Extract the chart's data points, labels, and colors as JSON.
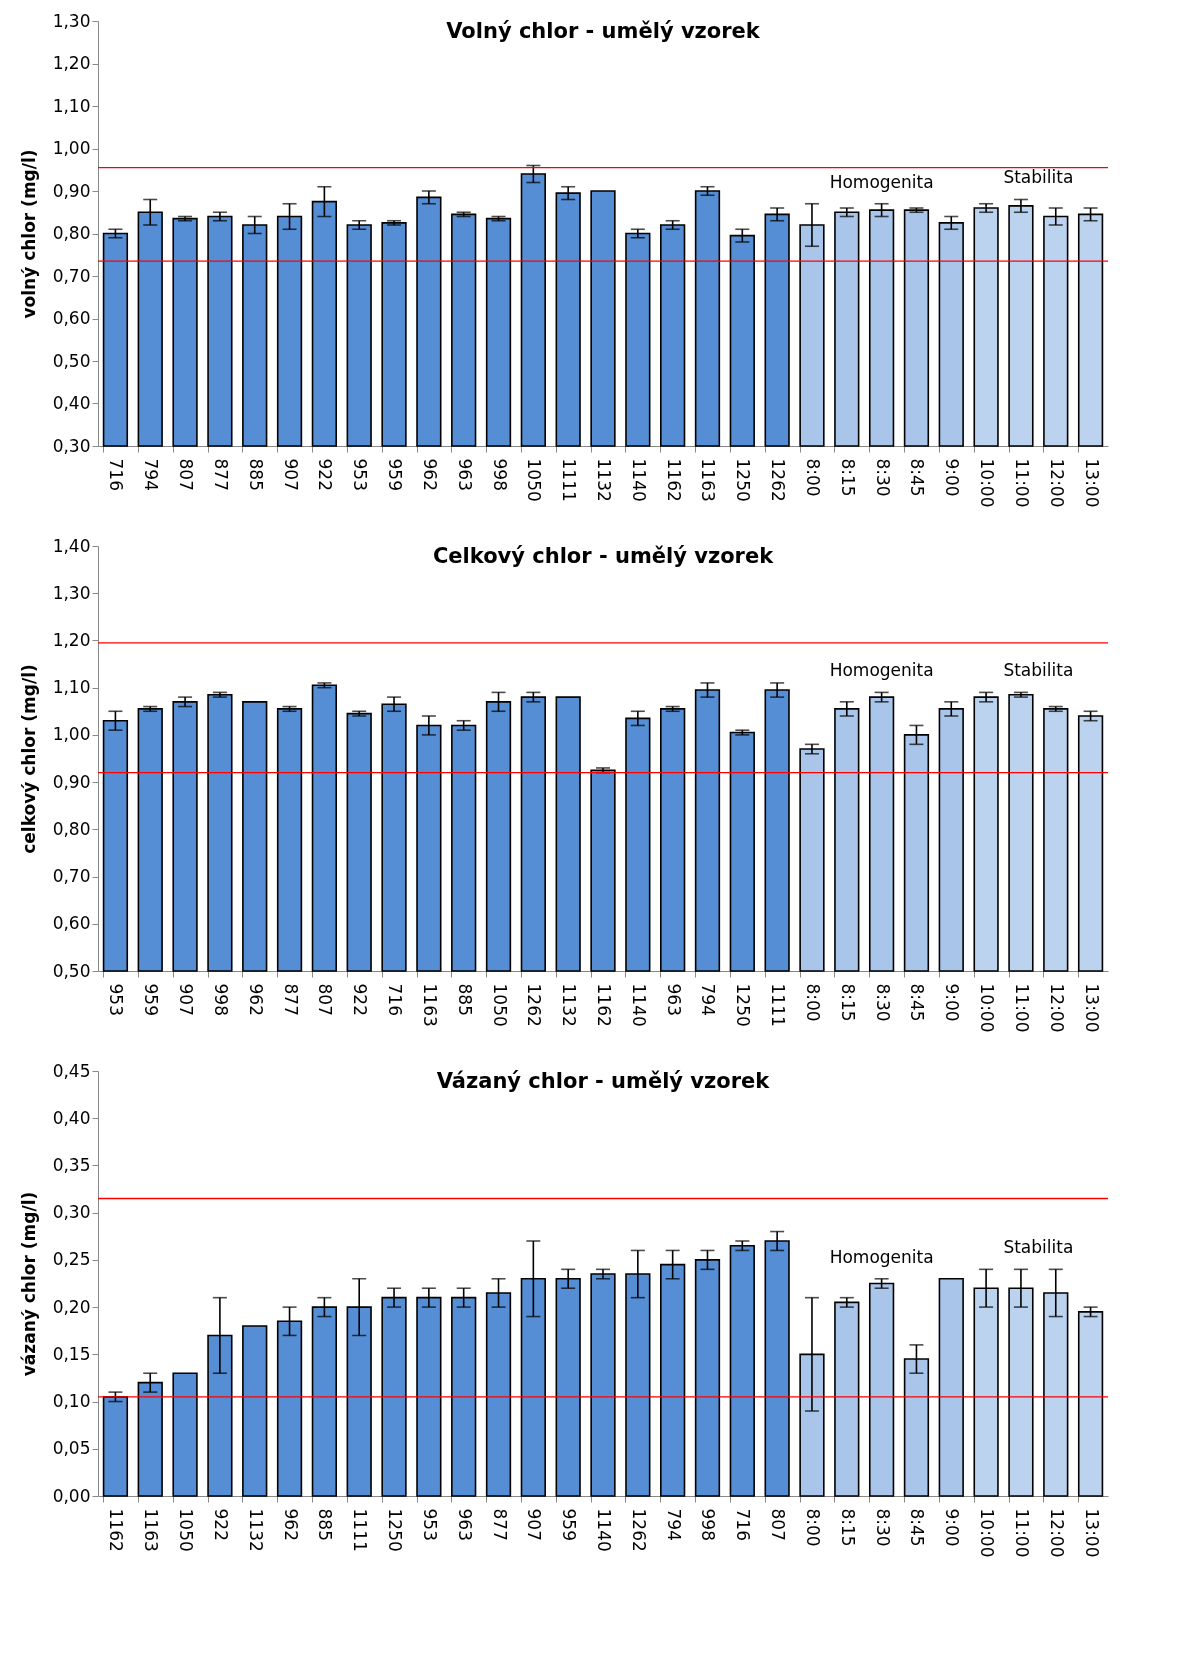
{
  "chart_data": [
    {
      "type": "bar",
      "title": "Volný chlor - umělý vzorek",
      "ylabel": "volný chlor (mg/l)",
      "categories": [
        "716",
        "794",
        "807",
        "877",
        "885",
        "907",
        "922",
        "953",
        "959",
        "962",
        "963",
        "998",
        "1050",
        "1111",
        "1132",
        "1140",
        "1162",
        "1163",
        "1250",
        "1262",
        "8:00",
        "8:15",
        "8:30",
        "8:45",
        "9:00",
        "10:00",
        "11:00",
        "12:00",
        "13:00"
      ],
      "values": [
        0.8,
        0.85,
        0.835,
        0.84,
        0.82,
        0.84,
        0.875,
        0.82,
        0.825,
        0.885,
        0.845,
        0.835,
        0.94,
        0.895,
        0.9,
        0.8,
        0.82,
        0.9,
        0.795,
        0.845,
        0.82,
        0.85,
        0.855,
        0.855,
        0.825,
        0.86,
        0.865,
        0.84,
        0.845
      ],
      "errors": [
        0.01,
        0.03,
        0.005,
        0.01,
        0.02,
        0.03,
        0.035,
        0.01,
        0.005,
        0.015,
        0.005,
        0.005,
        0.02,
        0.015,
        null,
        0.01,
        0.01,
        0.01,
        0.015,
        0.015,
        0.05,
        0.01,
        0.015,
        0.005,
        0.015,
        0.01,
        0.015,
        0.02,
        0.015
      ],
      "colors": [
        "#558ed5",
        "#558ed5",
        "#558ed5",
        "#558ed5",
        "#558ed5",
        "#558ed5",
        "#558ed5",
        "#558ed5",
        "#558ed5",
        "#558ed5",
        "#558ed5",
        "#558ed5",
        "#558ed5",
        "#558ed5",
        "#558ed5",
        "#558ed5",
        "#558ed5",
        "#558ed5",
        "#558ed5",
        "#558ed5",
        "#a9c6ea",
        "#a9c6ea",
        "#a9c6ea",
        "#a9c6ea",
        "#a9c6ea",
        "#bcd3ef",
        "#bcd3ef",
        "#bcd3ef",
        "#bcd3ef"
      ],
      "ylim": [
        0.3,
        1.3
      ],
      "yticks": [
        {
          "value": 0.3,
          "label": "0,30"
        },
        {
          "value": 0.4,
          "label": "0,40"
        },
        {
          "value": 0.5,
          "label": "0,50"
        },
        {
          "value": 0.6,
          "label": "0,60"
        },
        {
          "value": 0.7,
          "label": "0,70"
        },
        {
          "value": 0.8,
          "label": "0,80"
        },
        {
          "value": 0.9,
          "label": "0,90"
        },
        {
          "value": 1.0,
          "label": "1,00"
        },
        {
          "value": 1.1,
          "label": "1,10"
        },
        {
          "value": 1.2,
          "label": "1,20"
        },
        {
          "value": 1.3,
          "label": "1,30"
        }
      ],
      "ref_lines": [
        {
          "axis": "y",
          "value": 0.955,
          "color": "#ff0000"
        },
        {
          "axis": "y",
          "value": 0.735,
          "color": "#ff0000"
        }
      ],
      "annotations": [
        "Homogenita",
        "Stabilita"
      ],
      "grid": false
    },
    {
      "type": "bar",
      "title": "Celkový chlor - umělý vzorek",
      "ylabel": "celkový chlor (mg/l)",
      "categories": [
        "953",
        "959",
        "907",
        "998",
        "962",
        "877",
        "807",
        "922",
        "716",
        "1163",
        "885",
        "1050",
        "1262",
        "1132",
        "1162",
        "1140",
        "963",
        "794",
        "1250",
        "1111",
        "8:00",
        "8:15",
        "8:30",
        "8:45",
        "9:00",
        "10:00",
        "11:00",
        "12:00",
        "13:00"
      ],
      "values": [
        1.03,
        1.055,
        1.07,
        1.085,
        1.07,
        1.055,
        1.105,
        1.045,
        1.065,
        1.02,
        1.02,
        1.07,
        1.08,
        1.08,
        0.925,
        1.035,
        1.055,
        1.095,
        1.005,
        1.095,
        0.97,
        1.055,
        1.08,
        1.0,
        1.055,
        1.08,
        1.085,
        1.055,
        1.04
      ],
      "errors": [
        0.02,
        0.005,
        0.01,
        0.005,
        null,
        0.005,
        0.005,
        0.005,
        0.015,
        0.02,
        0.01,
        0.02,
        0.01,
        null,
        0.005,
        0.015,
        0.005,
        0.015,
        0.005,
        0.015,
        0.01,
        0.015,
        0.01,
        0.02,
        0.015,
        0.01,
        0.005,
        0.005,
        0.01
      ],
      "colors": [
        "#558ed5",
        "#558ed5",
        "#558ed5",
        "#558ed5",
        "#558ed5",
        "#558ed5",
        "#558ed5",
        "#558ed5",
        "#558ed5",
        "#558ed5",
        "#558ed5",
        "#558ed5",
        "#558ed5",
        "#558ed5",
        "#558ed5",
        "#558ed5",
        "#558ed5",
        "#558ed5",
        "#558ed5",
        "#558ed5",
        "#a9c6ea",
        "#a9c6ea",
        "#a9c6ea",
        "#a9c6ea",
        "#a9c6ea",
        "#bcd3ef",
        "#bcd3ef",
        "#bcd3ef",
        "#bcd3ef"
      ],
      "ylim": [
        0.5,
        1.4
      ],
      "yticks": [
        {
          "value": 0.5,
          "label": "0,50"
        },
        {
          "value": 0.6,
          "label": "0,60"
        },
        {
          "value": 0.7,
          "label": "0,70"
        },
        {
          "value": 0.8,
          "label": "0,80"
        },
        {
          "value": 0.9,
          "label": "0,90"
        },
        {
          "value": 1.0,
          "label": "1,00"
        },
        {
          "value": 1.1,
          "label": "1,10"
        },
        {
          "value": 1.2,
          "label": "1,20"
        },
        {
          "value": 1.3,
          "label": "1,30"
        },
        {
          "value": 1.4,
          "label": "1,40"
        }
      ],
      "ref_lines": [
        {
          "axis": "y",
          "value": 1.195,
          "color": "#ff0000"
        },
        {
          "axis": "y",
          "value": 0.92,
          "color": "#ff0000"
        }
      ],
      "annotations": [
        "Homogenita",
        "Stabilita"
      ],
      "grid": false
    },
    {
      "type": "bar",
      "title": "Vázaný chlor - umělý vzorek",
      "ylabel": "vázaný chlor (mg/l)",
      "categories": [
        "1162",
        "1163",
        "1050",
        "922",
        "1132",
        "962",
        "885",
        "1111",
        "1250",
        "953",
        "963",
        "877",
        "907",
        "959",
        "1140",
        "1262",
        "794",
        "998",
        "716",
        "807",
        "8:00",
        "8:15",
        "8:30",
        "8:45",
        "9:00",
        "10:00",
        "11:00",
        "12:00",
        "13:00"
      ],
      "values": [
        0.105,
        0.12,
        0.13,
        0.17,
        0.18,
        0.185,
        0.2,
        0.2,
        0.21,
        0.21,
        0.21,
        0.215,
        0.23,
        0.23,
        0.235,
        0.235,
        0.245,
        0.25,
        0.265,
        0.27,
        0.15,
        0.205,
        0.225,
        0.145,
        0.23,
        0.22,
        0.22,
        0.215,
        0.195
      ],
      "errors": [
        0.005,
        0.01,
        null,
        0.04,
        null,
        0.015,
        0.01,
        0.03,
        0.01,
        0.01,
        0.01,
        0.015,
        0.04,
        0.01,
        0.005,
        0.025,
        0.015,
        0.01,
        0.005,
        0.01,
        0.06,
        0.005,
        0.005,
        0.015,
        null,
        0.02,
        0.02,
        0.025,
        0.005
      ],
      "colors": [
        "#558ed5",
        "#558ed5",
        "#558ed5",
        "#558ed5",
        "#558ed5",
        "#558ed5",
        "#558ed5",
        "#558ed5",
        "#558ed5",
        "#558ed5",
        "#558ed5",
        "#558ed5",
        "#558ed5",
        "#558ed5",
        "#558ed5",
        "#558ed5",
        "#558ed5",
        "#558ed5",
        "#558ed5",
        "#558ed5",
        "#a9c6ea",
        "#a9c6ea",
        "#a9c6ea",
        "#a9c6ea",
        "#a9c6ea",
        "#bcd3ef",
        "#bcd3ef",
        "#bcd3ef",
        "#bcd3ef"
      ],
      "ylim": [
        0,
        0.45
      ],
      "yticks": [
        {
          "value": 0,
          "label": "0,00"
        },
        {
          "value": 0.05,
          "label": "0,05"
        },
        {
          "value": 0.1,
          "label": "0,10"
        },
        {
          "value": 0.15,
          "label": "0,15"
        },
        {
          "value": 0.2,
          "label": "0,20"
        },
        {
          "value": 0.25,
          "label": "0,25"
        },
        {
          "value": 0.3,
          "label": "0,30"
        },
        {
          "value": 0.35,
          "label": "0,35"
        },
        {
          "value": 0.4,
          "label": "0,40"
        },
        {
          "value": 0.45,
          "label": "0,45"
        }
      ],
      "ref_lines": [
        {
          "axis": "y",
          "value": 0.315,
          "color": "#ff0000"
        },
        {
          "axis": "y",
          "value": 0.105,
          "color": "#ff0000"
        }
      ],
      "annotations": [
        "Homogenita",
        "Stabilita"
      ],
      "grid": false
    }
  ]
}
